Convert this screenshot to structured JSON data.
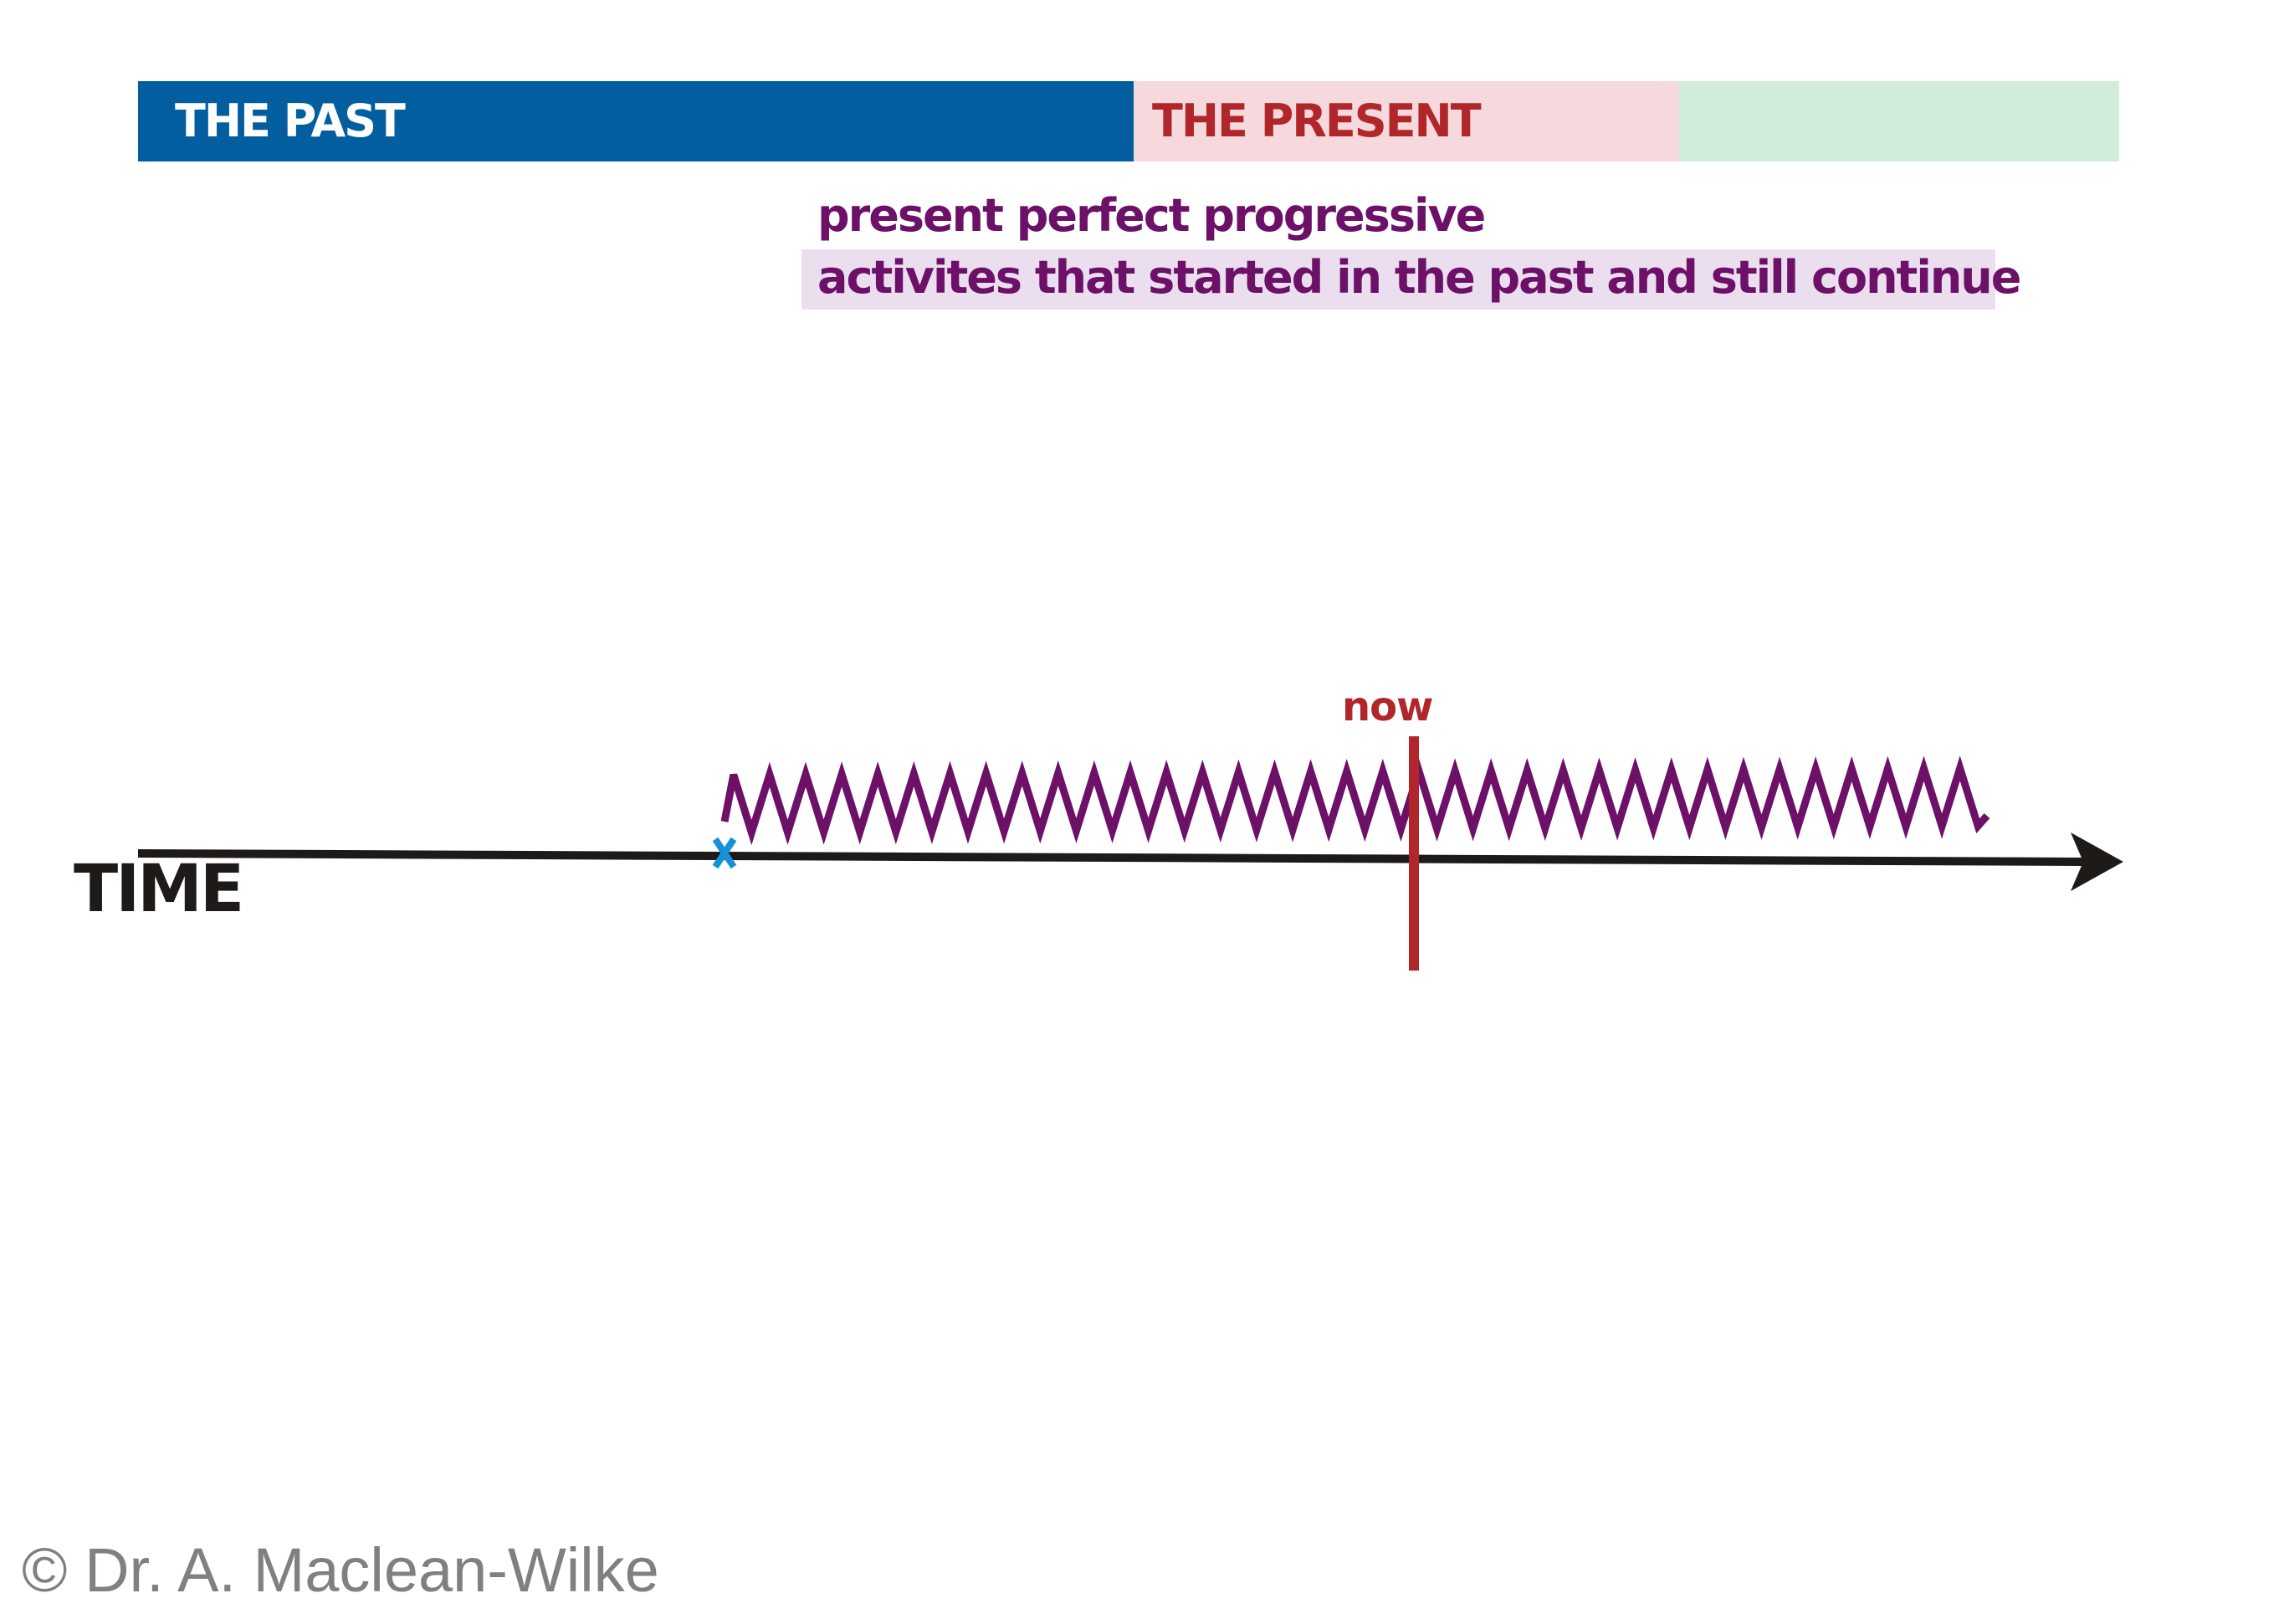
{
  "bands": {
    "past": {
      "label": "THE PAST",
      "color": "#025e9f"
    },
    "present": {
      "label": "THE PRESENT",
      "color": "#f6d9dc",
      "text_color": "#b0262a"
    },
    "future": {
      "label": "",
      "color": "#d1ecdb"
    }
  },
  "tense": {
    "title": "present perfect progressive",
    "description": "activites that started in the past and still continue",
    "color": "#6c1068",
    "highlight": "#ebdfef"
  },
  "timeline": {
    "axis_label": "TIME",
    "now_label": "now",
    "axis_color": "#1e1a18",
    "now_color": "#b0262a",
    "start_marker_color": "#1592d6",
    "zigzag_color": "#6c1068",
    "start_marker_icon": "cross-mark-icon",
    "arrow_icon": "arrow-right-icon"
  },
  "footer": {
    "copyright": "© Dr. A. Maclean-Wilke"
  }
}
